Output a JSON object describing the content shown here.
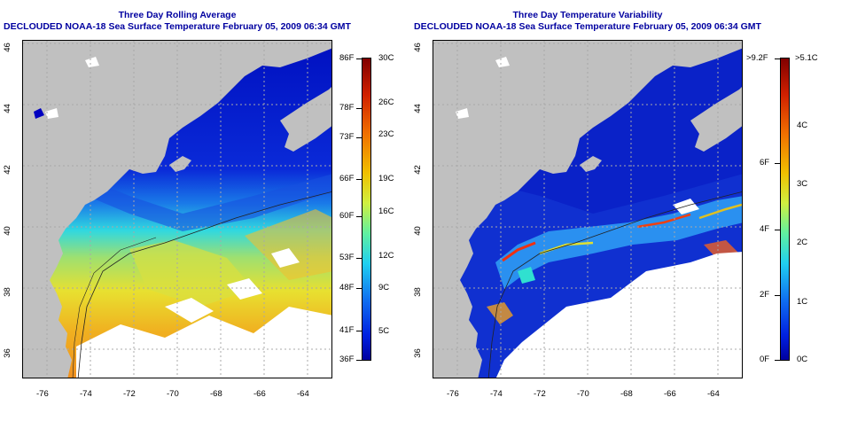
{
  "left_panel": {
    "title_line1": "Three Day Rolling Average",
    "title_line2": "DECLOUDED NOAA-18 Sea Surface Temperature February 05, 2009 06:34 GMT",
    "colorbar_fahrenheit": [
      "86F",
      "78F",
      "73F",
      "66F",
      "60F",
      "53F",
      "48F",
      "41F",
      "36F"
    ],
    "colorbar_celsius": [
      "30C",
      "26C",
      "23C",
      "19C",
      "16C",
      "12C",
      "9C",
      "5C"
    ]
  },
  "right_panel": {
    "title_line1": "Three Day Temperature Variability",
    "title_line2": "DECLOUDED NOAA-18 Sea Surface Temperature February 05, 2009 06:34 GMT",
    "colorbar_fahrenheit": [
      ">9.2F",
      "6F",
      "4F",
      "2F",
      "0F"
    ],
    "colorbar_celsius": [
      ">5.1C",
      "4C",
      "3C",
      "2C",
      "1C",
      "0C"
    ]
  },
  "axes": {
    "latitudes": [
      "46",
      "44",
      "42",
      "40",
      "38",
      "36"
    ],
    "longitudes": [
      "-76",
      "-74",
      "-72",
      "-70",
      "-68",
      "-66",
      "-64"
    ]
  },
  "colors": {
    "title": "#0000a0",
    "land": "#c0c0c0",
    "cloud": "#ffffff"
  }
}
